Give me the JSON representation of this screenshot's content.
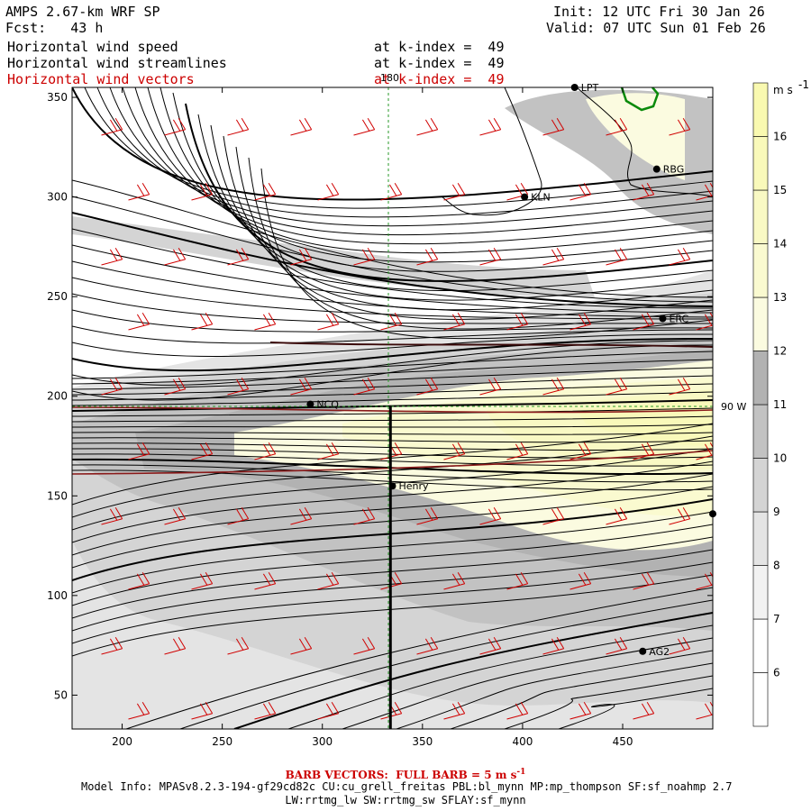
{
  "header": {
    "model_line": "AMPS 2.67-km WRF SP",
    "fcst_line": "Fcst:   43 h",
    "init_line": "Init: 12 UTC Fri 30 Jan 26",
    "valid_line": "Valid: 07 UTC Sun 01 Feb 26",
    "fields": [
      {
        "name": "Horizontal wind speed",
        "level": "at k-index =  49"
      },
      {
        "name": "Horizontal wind streamlines",
        "level": "at k-index =  49"
      },
      {
        "name": "Horizontal wind vectors",
        "level": "at k-index =  49"
      }
    ]
  },
  "map": {
    "meridian_label": "180",
    "parallel_label": "90 W",
    "stations": [
      {
        "name": "KLN",
        "x": 401,
        "y": 300
      },
      {
        "name": "RBG",
        "x": 467,
        "y": 314
      },
      {
        "name": "ERC",
        "x": 470,
        "y": 239
      },
      {
        "name": "NCQ",
        "x": 294,
        "y": 196
      },
      {
        "name": "Henry",
        "x": 335,
        "y": 155
      },
      {
        "name": "AG2",
        "x": 460,
        "y": 72
      },
      {
        "name": "LPT",
        "x": 426,
        "y": 355
      },
      {
        "name": "",
        "x": 495,
        "y": 141
      }
    ]
  },
  "colorbar": {
    "unit": "m s",
    "unit_sup": "-1",
    "levels": [
      6,
      7,
      8,
      9,
      10,
      11,
      12,
      13,
      14,
      15,
      16
    ],
    "colors": [
      "#ffffff",
      "#f2f2f2",
      "#e4e4e4",
      "#d4d4d4",
      "#c2c2c2",
      "#b2b2b2",
      "#fbfbe0",
      "#fafad0",
      "#f9f9c4",
      "#f9f9ba",
      "#f9f9b0"
    ]
  },
  "chart_data": {
    "type": "heatmap",
    "title": "Horizontal wind speed",
    "xlim": [
      175,
      495
    ],
    "ylim": [
      33,
      355
    ],
    "x_ticks": [
      200,
      250,
      300,
      350,
      400,
      450
    ],
    "y_ticks": [
      50,
      100,
      150,
      200,
      250,
      300,
      350
    ],
    "cross_section": {
      "x": 334,
      "y0": 195,
      "y1": 33
    }
  },
  "footer": {
    "barb_label": "BARB VECTORS:  FULL BARB = 5 m s",
    "barb_sup": "-1",
    "model_info_1": "Model Info: MPASv8.2.3-194-gf29cd82c CU:cu_grell_freitas PBL:bl_mynn MP:mp_thompson SF:sf_noahmp 2.7",
    "model_info_2": "LW:rrtmg_lw SW:rrtmg_sw SFLAY:sf_mynn"
  }
}
